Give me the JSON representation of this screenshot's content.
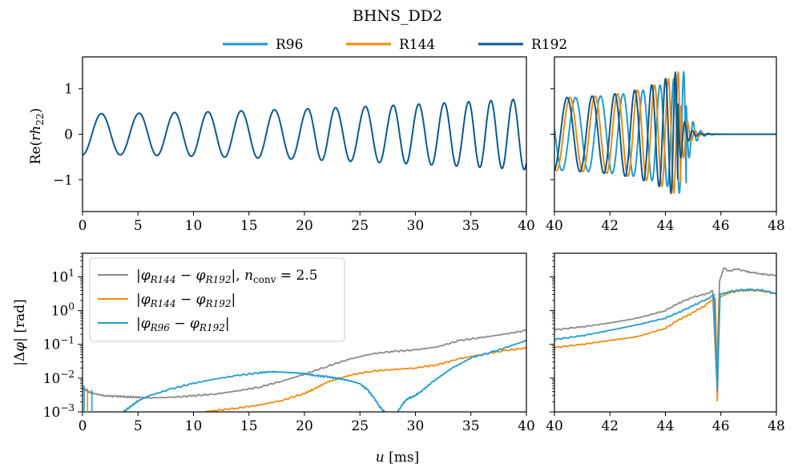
{
  "colors": {
    "R96": "#1f9bd1",
    "R144": "#f08a0c",
    "R192": "#0b5a8e",
    "nconv": "#8a8a8a"
  },
  "chart_data": {
    "type": "line",
    "title": "BHNS_DD2",
    "legend_top": [
      {
        "name": "R96",
        "color_key": "R96"
      },
      {
        "name": "R144",
        "color_key": "R144"
      },
      {
        "name": "R192",
        "color_key": "R192"
      }
    ],
    "xlabel": "u [ms]",
    "panels": {
      "strain_inspiral": {
        "ylabel": "Re(rh22)",
        "xlim": [
          0,
          40
        ],
        "ylim": [
          -1.7,
          1.7
        ],
        "xticks": [
          0,
          5,
          10,
          15,
          20,
          25,
          30,
          35,
          40
        ],
        "yticks": [
          {
            "v": 1,
            "label": "1"
          },
          {
            "v": 0,
            "label": "0"
          },
          {
            "v": -1,
            "label": "−1"
          }
        ],
        "series": [
          {
            "name": "R192",
            "color_key": "R192",
            "model": "amp(u)·cos(phase(u))",
            "amp_start": 0.45,
            "amp_end": 0.78,
            "peaks_at_u": [
              1.7,
              5.1,
              8.3,
              11.3,
              14.3,
              17.3,
              20.3,
              22.8,
              25.5,
              28.0,
              30.3,
              32.6,
              34.8,
              36.8,
              38.8
            ]
          }
        ]
      },
      "strain_merger": {
        "xlim": [
          40,
          48
        ],
        "ylim": [
          -1.7,
          1.7
        ],
        "xticks": [
          40,
          42,
          44,
          46,
          48
        ],
        "series": [
          {
            "name": "R96",
            "color_key": "R96",
            "merger_u": 44.75
          },
          {
            "name": "R144",
            "color_key": "R144",
            "merger_u": 44.55
          },
          {
            "name": "R192",
            "color_key": "R192",
            "merger_u": 44.45
          }
        ],
        "peak_amplitude": 1.4
      },
      "phase_inspiral": {
        "ylabel": "|Δφ| [rad]",
        "yscale": "log",
        "xlim": [
          0,
          40
        ],
        "ylim": [
          0.001,
          50
        ],
        "xticks": [
          0,
          5,
          10,
          15,
          20,
          25,
          30,
          35,
          40
        ],
        "yticks": [
          {
            "v": 10,
            "label": "10^1"
          },
          {
            "v": 1,
            "label": "10^0"
          },
          {
            "v": 0.1,
            "label": "10^-1"
          },
          {
            "v": 0.01,
            "label": "10^-2"
          },
          {
            "v": 0.001,
            "label": "10^-3"
          }
        ],
        "legend": [
          {
            "label": "|φR144 − φR192|, nconv = 2.5",
            "color_key": "nconv"
          },
          {
            "label": "|φR144 − φR192|",
            "color_key": "R144"
          },
          {
            "label": "|φR96 − φR192|",
            "color_key": "R96"
          }
        ],
        "series": [
          {
            "name": "nconv=2.5",
            "color_key": "nconv",
            "x": [
              0,
              0.5,
              1,
              2,
              3,
              4,
              5,
              6,
              8,
              10,
              12,
              14,
              16,
              18,
              20,
              22,
              24,
              26,
              28,
              30,
              32,
              34,
              36,
              38,
              40
            ],
            "y": [
              0.005,
              0.004,
              0.0035,
              0.003,
              0.0029,
              0.0028,
              0.0027,
              0.0026,
              0.0027,
              0.003,
              0.0034,
              0.0042,
              0.0055,
              0.0082,
              0.013,
              0.022,
              0.036,
              0.052,
              0.062,
              0.068,
              0.085,
              0.13,
              0.16,
              0.2,
              0.26
            ]
          },
          {
            "name": "R144-R192",
            "color_key": "R144",
            "x": [
              11,
              12,
              14,
              16,
              18,
              20,
              21,
              22,
              24,
              26,
              28,
              30,
              32,
              34,
              36,
              38,
              40
            ],
            "y": [
              0.001,
              0.0011,
              0.0013,
              0.0016,
              0.0022,
              0.0035,
              0.005,
              0.0075,
              0.012,
              0.016,
              0.018,
              0.02,
              0.025,
              0.038,
              0.05,
              0.065,
              0.078
            ]
          },
          {
            "name": "R96-R192",
            "color_key": "R96",
            "x": [
              3.7,
              4.5,
              5,
              6,
              8,
              10,
              12,
              14,
              16,
              17,
              18,
              19,
              20,
              21,
              22,
              23,
              24,
              25,
              25.7,
              26.3,
              26.8,
              27.2
            ],
            "y": [
              0.001,
              0.0016,
              0.0021,
              0.003,
              0.0048,
              0.007,
              0.0095,
              0.012,
              0.0145,
              0.0155,
              0.015,
              0.0145,
              0.0135,
              0.012,
              0.011,
              0.0098,
              0.0085,
              0.0068,
              0.0045,
              0.0025,
              0.0014,
              0.001
            ]
          },
          {
            "name": "R96-R192b",
            "color_key": "R96",
            "x": [
              28.4,
              28.9,
              29.3,
              29.8,
              30.5,
              31.5,
              32.5,
              33.5,
              35,
              37,
              39,
              40
            ],
            "y": [
              0.001,
              0.0018,
              0.0025,
              0.0028,
              0.004,
              0.0075,
              0.013,
              0.022,
              0.04,
              0.06,
              0.1,
              0.13
            ]
          }
        ]
      },
      "phase_merger": {
        "yscale": "log",
        "xlim": [
          40,
          48
        ],
        "ylim": [
          0.001,
          50
        ],
        "xticks": [
          40,
          42,
          44,
          46,
          48
        ],
        "series": [
          {
            "name": "nconv=2.5",
            "color_key": "nconv",
            "x": [
              40,
              41,
              42,
              43,
              44,
              44.5,
              45,
              45.5,
              45.7,
              45.85,
              45.95,
              46.1,
              46.3,
              46.6,
              47,
              47.5,
              48
            ],
            "y": [
              0.27,
              0.33,
              0.43,
              0.6,
              1.0,
              1.7,
              2.5,
              3.2,
              3.8,
              0.01,
              7.0,
              18.0,
              15.0,
              17.0,
              14.0,
              12.0,
              11.0
            ]
          },
          {
            "name": "R144-R192",
            "color_key": "R144",
            "x": [
              40,
              41,
              42,
              43,
              44,
              44.5,
              44.8,
              45,
              45.3,
              45.6,
              45.8,
              45.87,
              45.95,
              46.2,
              46.6,
              47,
              47.5,
              48
            ],
            "y": [
              0.08,
              0.1,
              0.13,
              0.17,
              0.3,
              0.55,
              0.7,
              0.9,
              1.2,
              1.8,
              2.2,
              0.002,
              2.4,
              3.2,
              3.8,
              4.0,
              3.8,
              3.1
            ]
          },
          {
            "name": "R96-R192",
            "color_key": "R96",
            "x": [
              40,
              41,
              42,
              43,
              44,
              44.5,
              45,
              45.5,
              45.75,
              45.87,
              45.97,
              46.2,
              46.6,
              47,
              47.5,
              48
            ],
            "y": [
              0.14,
              0.18,
              0.26,
              0.38,
              0.6,
              0.9,
              1.4,
              2.2,
              2.8,
              0.004,
              3.0,
              3.5,
              4.0,
              4.2,
              4.0,
              3.2
            ]
          }
        ]
      }
    }
  }
}
